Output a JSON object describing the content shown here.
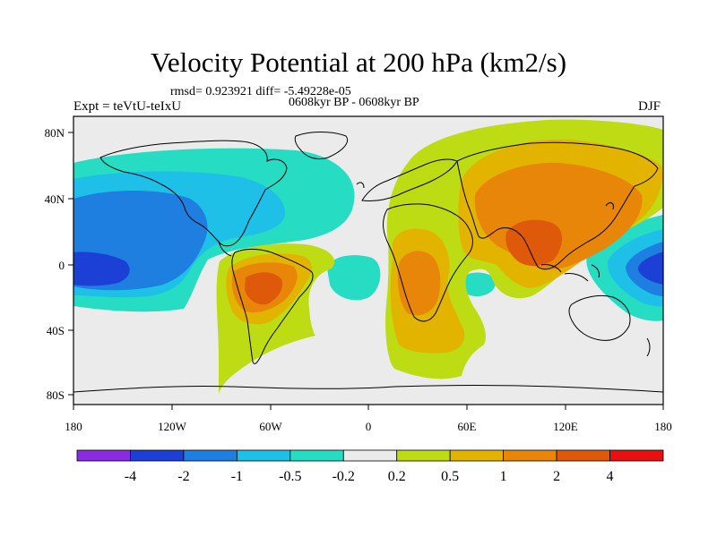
{
  "title": "Velocity Potential at 200 hPa (km2/s)",
  "stats_line": "rmsd= 0.923921 diff= -5.49228e-05",
  "period_line": "0608kyr BP - 0608kyr BP",
  "expt_label": "Expt = teVtU-teIxU",
  "season": "DJF",
  "lon_ticks": [
    "180",
    "120W",
    "60W",
    "0",
    "60E",
    "120E",
    "180"
  ],
  "lat_ticks": [
    "80N",
    "40N",
    "0",
    "40S",
    "80S"
  ],
  "colorbar": {
    "colors": [
      "#8a2be2",
      "#1c3fd6",
      "#1e7fe0",
      "#1ec0e8",
      "#26ddc4",
      "#ebebeb",
      "#bedc14",
      "#e2b400",
      "#e8860a",
      "#de5a0a",
      "#e81010"
    ],
    "labels": [
      "-4",
      "-2",
      "-1",
      "-0.5",
      "-0.2",
      "0.2",
      "0.5",
      "1",
      "2",
      "4"
    ]
  }
}
